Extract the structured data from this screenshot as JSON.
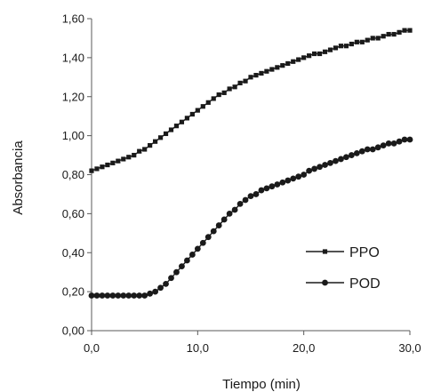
{
  "chart_data": {
    "type": "line",
    "xlabel": "Tiempo (min)",
    "ylabel": "Absorbancia",
    "xlim": [
      0,
      30
    ],
    "ylim": [
      0,
      1.6
    ],
    "xticks": [
      "0,0",
      "10,0",
      "20,0",
      "30,0"
    ],
    "yticks": [
      "0,00",
      "0,20",
      "0,40",
      "0,60",
      "0,80",
      "1,00",
      "1,20",
      "1,40",
      "1,60"
    ],
    "grid": false,
    "legend_position": "bottom-right",
    "series": [
      {
        "name": "PPO",
        "marker": "square",
        "x": [
          0,
          0.5,
          1,
          1.5,
          2,
          2.5,
          3,
          3.5,
          4,
          4.5,
          5,
          5.5,
          6,
          6.5,
          7,
          7.5,
          8,
          8.5,
          9,
          9.5,
          10,
          10.5,
          11,
          11.5,
          12,
          12.5,
          13,
          13.5,
          14,
          14.5,
          15,
          15.5,
          16,
          16.5,
          17,
          17.5,
          18,
          18.5,
          19,
          19.5,
          20,
          20.5,
          21,
          21.5,
          22,
          22.5,
          23,
          23.5,
          24,
          24.5,
          25,
          25.5,
          26,
          26.5,
          27,
          27.5,
          28,
          28.5,
          29,
          29.5,
          30
        ],
        "values": [
          0.82,
          0.83,
          0.84,
          0.85,
          0.86,
          0.87,
          0.88,
          0.89,
          0.9,
          0.92,
          0.93,
          0.95,
          0.97,
          0.99,
          1.01,
          1.03,
          1.05,
          1.07,
          1.09,
          1.11,
          1.13,
          1.15,
          1.17,
          1.19,
          1.21,
          1.22,
          1.24,
          1.25,
          1.27,
          1.28,
          1.3,
          1.31,
          1.32,
          1.33,
          1.34,
          1.35,
          1.36,
          1.37,
          1.38,
          1.39,
          1.4,
          1.41,
          1.42,
          1.42,
          1.43,
          1.44,
          1.45,
          1.46,
          1.46,
          1.47,
          1.48,
          1.48,
          1.49,
          1.5,
          1.5,
          1.51,
          1.52,
          1.52,
          1.53,
          1.54,
          1.54
        ]
      },
      {
        "name": "POD",
        "marker": "circle",
        "x": [
          0,
          0.5,
          1,
          1.5,
          2,
          2.5,
          3,
          3.5,
          4,
          4.5,
          5,
          5.5,
          6,
          6.5,
          7,
          7.5,
          8,
          8.5,
          9,
          9.5,
          10,
          10.5,
          11,
          11.5,
          12,
          12.5,
          13,
          13.5,
          14,
          14.5,
          15,
          15.5,
          16,
          16.5,
          17,
          17.5,
          18,
          18.5,
          19,
          19.5,
          20,
          20.5,
          21,
          21.5,
          22,
          22.5,
          23,
          23.5,
          24,
          24.5,
          25,
          25.5,
          26,
          26.5,
          27,
          27.5,
          28,
          28.5,
          29,
          29.5,
          30
        ],
        "values": [
          0.18,
          0.18,
          0.18,
          0.18,
          0.18,
          0.18,
          0.18,
          0.18,
          0.18,
          0.18,
          0.18,
          0.19,
          0.2,
          0.22,
          0.24,
          0.27,
          0.3,
          0.33,
          0.36,
          0.39,
          0.42,
          0.45,
          0.48,
          0.51,
          0.54,
          0.57,
          0.6,
          0.62,
          0.65,
          0.67,
          0.69,
          0.7,
          0.72,
          0.73,
          0.74,
          0.75,
          0.76,
          0.77,
          0.78,
          0.79,
          0.8,
          0.82,
          0.83,
          0.84,
          0.85,
          0.86,
          0.87,
          0.88,
          0.89,
          0.9,
          0.91,
          0.92,
          0.93,
          0.93,
          0.94,
          0.95,
          0.96,
          0.96,
          0.97,
          0.98,
          0.98
        ]
      }
    ]
  },
  "colors": {
    "series": "#1a1a1a",
    "axis": "#595959",
    "background": "#ffffff"
  }
}
